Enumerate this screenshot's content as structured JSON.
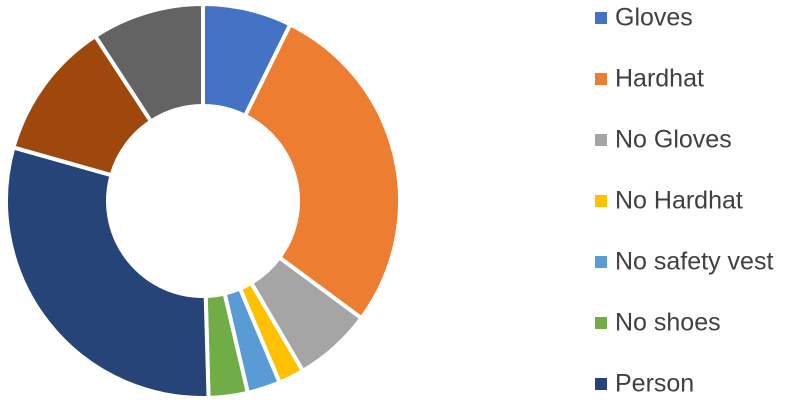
{
  "chart_data": {
    "type": "donut",
    "categories": [
      "Gloves",
      "Hardhat",
      "No Gloves",
      "No Hardhat",
      "No safety vest",
      "No shoes",
      "Person",
      null,
      null
    ],
    "values": [
      7.3,
      27.8,
      6.4,
      2.1,
      2.7,
      3.2,
      29.8,
      11.4,
      9.2
    ],
    "colors": [
      "#4472c4",
      "#ed7d31",
      "#a5a5a5",
      "#ffc000",
      "#5b9bd5",
      "#70ad47",
      "#264478",
      "#9e480e",
      "#636363"
    ]
  }
}
